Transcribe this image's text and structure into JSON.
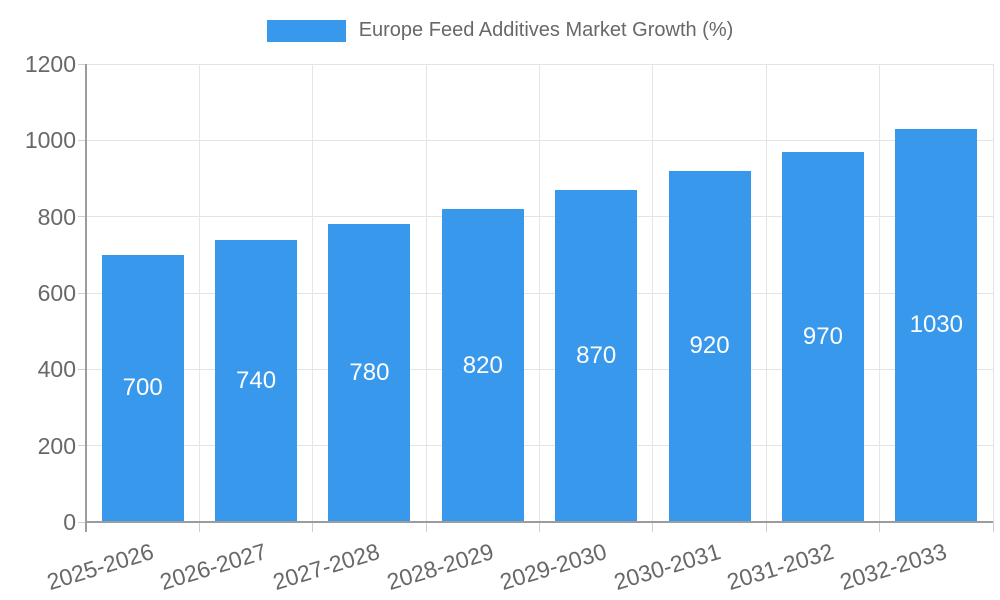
{
  "chart_data": {
    "type": "bar",
    "title": "Europe Feed Additives Market Growth (%)",
    "categories": [
      "2025-2026",
      "2026-2027",
      "2027-2028",
      "2028-2029",
      "2029-2030",
      "2030-2031",
      "2031-2032",
      "2032-2033"
    ],
    "values": [
      700,
      740,
      780,
      820,
      870,
      920,
      970,
      1030
    ],
    "value_labels": [
      "700",
      "740",
      "780",
      "820",
      "870",
      "920",
      "970",
      "1030"
    ],
    "xlabel": "",
    "ylabel": "",
    "ylim": [
      0,
      1200
    ],
    "ytick_step": 200,
    "yticks": [
      "0",
      "200",
      "400",
      "600",
      "800",
      "1000",
      "1200"
    ],
    "grid": "on",
    "legend_position": "top-center",
    "colors": {
      "bar": "#3898ec",
      "value_label": "#ffffff",
      "tick_text": "#686868",
      "legend_text": "#686868",
      "gridline": "#e4e4e4",
      "tick_mark": "#cfcfcf",
      "axis_line": "#9c9c9c",
      "background": "#ffffff"
    }
  }
}
